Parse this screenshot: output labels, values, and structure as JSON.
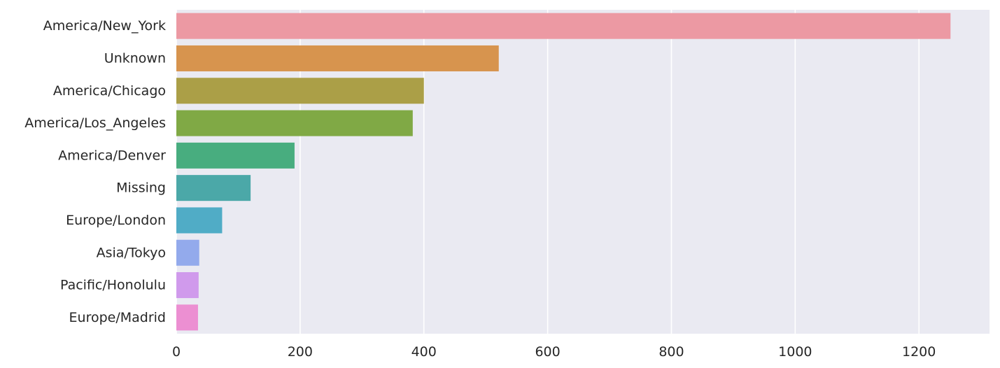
{
  "chart_data": {
    "type": "bar",
    "orientation": "horizontal",
    "title": "",
    "xlabel": "",
    "ylabel": "",
    "categories": [
      "America/New_York",
      "Unknown",
      "America/Chicago",
      "America/Los_Angeles",
      "America/Denver",
      "Missing",
      "Europe/London",
      "Asia/Tokyo",
      "Pacific/Honolulu",
      "Europe/Madrid"
    ],
    "values": [
      1251,
      521,
      400,
      382,
      191,
      120,
      74,
      37,
      36,
      35
    ],
    "colors": [
      "#ec99a3",
      "#d7944e",
      "#ab9f47",
      "#80a945",
      "#48ad7f",
      "#4ba8a8",
      "#50acc6",
      "#93aaec",
      "#d09aec",
      "#ec8fd2"
    ],
    "xlim": [
      0,
      1314
    ],
    "xticks": [
      0,
      200,
      400,
      600,
      800,
      1000,
      1200
    ],
    "xtick_labels": [
      "0",
      "200",
      "400",
      "600",
      "800",
      "1000",
      "1200"
    ],
    "grid": true,
    "legend": "none",
    "style": {
      "background": "#eaeaf2",
      "grid_color": "#ffffff",
      "text_color": "#262626"
    }
  }
}
